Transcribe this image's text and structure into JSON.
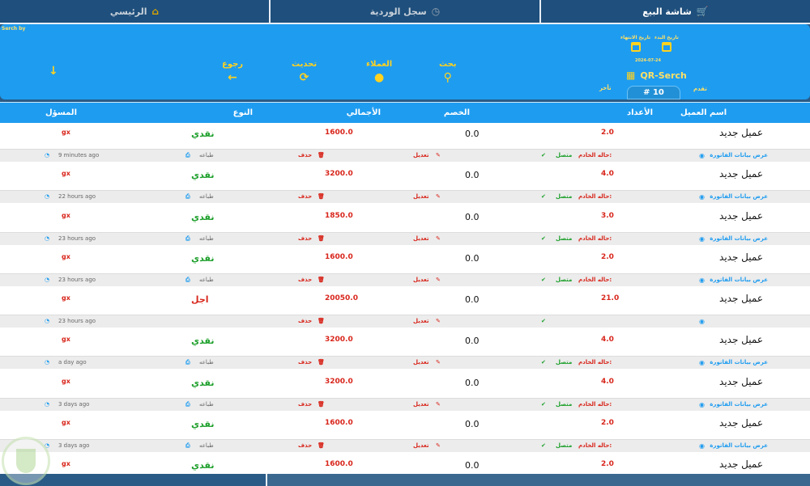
{
  "tabs": [
    {
      "label": "شاشة البيع",
      "icon": "cart-icon"
    },
    {
      "label": "سجل الوردية",
      "icon": "history-icon"
    },
    {
      "label": "الرئيسي",
      "icon": "home-icon"
    }
  ],
  "search": {
    "search_by_label": "Serch by",
    "start_date_label": "تاريخ البدء",
    "end_date_label": "تاريخ الانتهاء",
    "date_value": "2024-07-24",
    "qr_label": "QR-Serch",
    "page_number": "# 10",
    "next_label": "تقدم",
    "prev_label": "تأخر"
  },
  "toolbar": {
    "search_label": "بحث",
    "clients_label": "العملاء",
    "refresh_label": "تحديث",
    "back_label": "رجوع"
  },
  "columns": {
    "client_name": "اسم العميل",
    "count": "الأعداد",
    "discount": "الخصم",
    "total": "الأجمالي",
    "type": "النوع",
    "responsible": "المسؤل"
  },
  "row_actions": {
    "view": "عرض بيانات الفاتورة",
    "server_label": "حاله الخادم:",
    "server_value": "متصل",
    "edit": "تعديل",
    "delete": "حذف",
    "print": "طباعه"
  },
  "rows": [
    {
      "name": "عميل جديد",
      "count": "2.0",
      "discount": "0.0",
      "total": "1600.0",
      "type": "نقدي",
      "responsible": "gx",
      "time": "9 minutes ago"
    },
    {
      "name": "عميل جديد",
      "count": "4.0",
      "discount": "0.0",
      "total": "3200.0",
      "type": "نقدي",
      "responsible": "gx",
      "time": "22 hours ago"
    },
    {
      "name": "عميل جديد",
      "count": "3.0",
      "discount": "0.0",
      "total": "1850.0",
      "type": "نقدي",
      "responsible": "gx",
      "time": "23 hours ago"
    },
    {
      "name": "عميل جديد",
      "count": "2.0",
      "discount": "0.0",
      "total": "1600.0",
      "type": "نقدي",
      "responsible": "gx",
      "time": "23 hours ago"
    },
    {
      "name": "عميل جديد",
      "count": "21.0",
      "discount": "0.0",
      "total": "20050.0",
      "type": "اجل",
      "responsible": "gx",
      "time": "23 hours ago"
    },
    {
      "name": "عميل جديد",
      "count": "4.0",
      "discount": "0.0",
      "total": "3200.0",
      "type": "نقدي",
      "responsible": "gx",
      "time": "a day ago"
    },
    {
      "name": "عميل جديد",
      "count": "4.0",
      "discount": "0.0",
      "total": "3200.0",
      "type": "نقدي",
      "responsible": "gx",
      "time": "3 days ago"
    },
    {
      "name": "عميل جديد",
      "count": "2.0",
      "discount": "0.0",
      "total": "1600.0",
      "type": "نقدي",
      "responsible": "gx",
      "time": "3 days ago"
    },
    {
      "name": "عميل جديد",
      "count": "2.0",
      "discount": "0.0",
      "total": "1600.0",
      "type": "نقدي",
      "responsible": "gx",
      "time": ""
    }
  ]
}
